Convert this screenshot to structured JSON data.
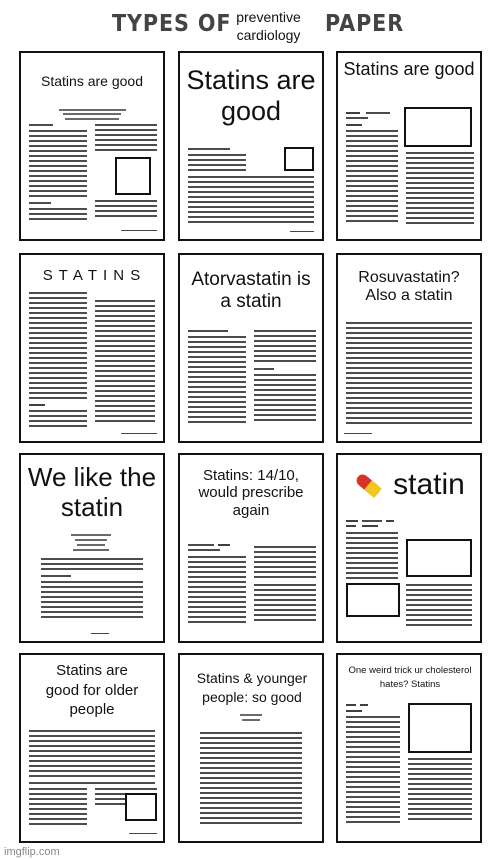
{
  "header": {
    "types_label": "TYPES OF",
    "subject": "preventive\ncardiology",
    "paper_label": "PAPER"
  },
  "papers": [
    {
      "title": "Statins are good"
    },
    {
      "title": "Statins are good"
    },
    {
      "title": "Statins are good"
    },
    {
      "title": "S T A T I N S"
    },
    {
      "title": "Atorvastatin is a statin"
    },
    {
      "title": "Rosuvastatin? Also a statin"
    },
    {
      "title": "We like the statin"
    },
    {
      "title": "Statins: 14/10, would prescribe again"
    },
    {
      "title": "statin",
      "icon": "pill-icon"
    },
    {
      "title": "Statins are good for older people"
    },
    {
      "title": "Statins & younger people: so good"
    },
    {
      "title": "One weird trick ur cholesterol hates? Statins"
    }
  ],
  "watermark": "imgflip.com"
}
